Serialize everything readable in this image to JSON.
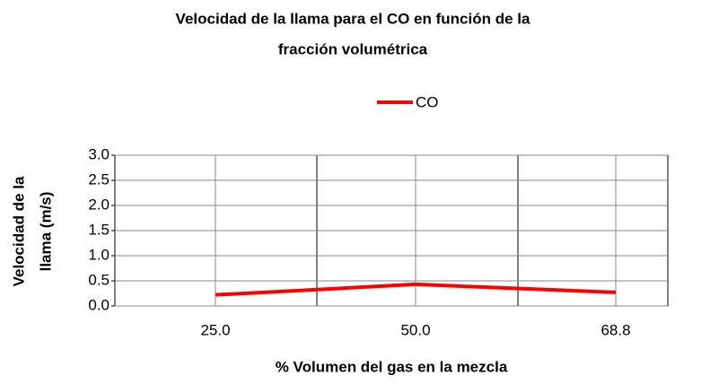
{
  "chart_data": {
    "type": "line",
    "title": [
      "Velocidad de la llama para el CO en función de la",
      "fracción volumétrica"
    ],
    "x_label": "% Volumen del gas en la mezcla",
    "y_label": [
      "Velocidad de la",
      "llama (m/s)"
    ],
    "categories": [
      "25.0",
      "50.0",
      "68.8"
    ],
    "series": [
      {
        "name": "CO",
        "color": "#ff0000",
        "values": [
          0.22,
          0.43,
          0.27
        ]
      }
    ],
    "ylim": [
      0,
      3
    ],
    "yticks": [
      {
        "value": 0,
        "label": "0.0"
      },
      0.5,
      {
        "value": 1,
        "label": "1.0"
      },
      1.5,
      {
        "value": 2,
        "label": "2.0"
      },
      2.5,
      {
        "value": 3,
        "label": "3.0"
      }
    ],
    "grid": true,
    "legend": "top"
  }
}
